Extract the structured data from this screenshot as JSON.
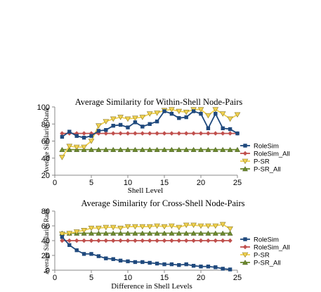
{
  "chart_data": [
    {
      "type": "line",
      "title": "Average Similarity for Within-Shell Node-Pairs",
      "xlabel": "Shell Level",
      "ylabel": "Average Similarity Rank",
      "xlim": [
        0,
        25
      ],
      "ylim": [
        20,
        100
      ],
      "xticks": [
        0,
        5,
        10,
        15,
        20,
        25
      ],
      "yticks": [
        20,
        40,
        60,
        80,
        100
      ],
      "grid": false,
      "legend": "right",
      "x": [
        1,
        2,
        3,
        4,
        5,
        6,
        7,
        8,
        9,
        10,
        11,
        12,
        13,
        14,
        15,
        16,
        17,
        18,
        19,
        20,
        21,
        22,
        23,
        24,
        25
      ],
      "series": [
        {
          "name": "RoleSim",
          "color": "#1f497d",
          "marker": "square",
          "values": [
            65,
            71,
            66,
            64,
            66,
            72,
            73,
            78,
            79,
            76,
            82,
            77,
            80,
            83,
            95,
            92,
            87,
            88,
            95,
            92,
            75,
            92,
            75,
            74,
            69
          ]
        },
        {
          "name": "RoleSim_All",
          "color": "#c0504d",
          "marker": "diamond",
          "values": [
            69,
            69,
            69,
            69,
            69,
            69,
            69,
            69,
            69,
            69,
            69,
            69,
            69,
            69,
            69,
            69,
            69,
            69,
            69,
            69,
            69,
            69,
            69,
            69,
            69
          ]
        },
        {
          "name": "P-SR",
          "color": "#f2d24e",
          "marker": "triangle-down",
          "values": [
            41,
            54,
            53,
            53,
            60,
            78,
            83,
            86,
            88,
            86,
            87,
            88,
            92,
            93,
            96,
            97,
            95,
            94,
            97,
            97,
            90,
            97,
            92,
            86,
            91
          ]
        },
        {
          "name": "P-SR_All",
          "color": "#6e8b2e",
          "marker": "triangle-up",
          "values": [
            50,
            50,
            50,
            50,
            50,
            50,
            50,
            50,
            50,
            50,
            50,
            50,
            50,
            50,
            50,
            50,
            50,
            50,
            50,
            50,
            50,
            50,
            50,
            50,
            50
          ]
        }
      ]
    },
    {
      "type": "line",
      "title": "Average Similarity for Cross-Shell Node-Pairs",
      "xlabel": "Difference in Shell Levels",
      "ylabel": "Average Similarity Rank",
      "xlim": [
        0,
        25
      ],
      "ylim": [
        0,
        80
      ],
      "xticks": [
        0,
        5,
        10,
        15,
        20,
        25
      ],
      "yticks": [
        0,
        20,
        40,
        60,
        80
      ],
      "grid": false,
      "legend": "right",
      "x": [
        1,
        2,
        3,
        4,
        5,
        6,
        7,
        8,
        9,
        10,
        11,
        12,
        13,
        14,
        15,
        16,
        17,
        18,
        19,
        20,
        21,
        22,
        23,
        24
      ],
      "series": [
        {
          "name": "RoleSim",
          "color": "#1f497d",
          "marker": "square",
          "values": [
            45,
            34,
            27,
            22,
            22,
            19,
            16,
            15,
            13,
            12,
            11,
            11,
            10,
            9,
            8,
            8,
            7,
            8,
            6,
            5,
            5,
            4,
            2,
            1
          ]
        },
        {
          "name": "RoleSim_All",
          "color": "#c0504d",
          "marker": "diamond",
          "values": [
            40,
            40,
            40,
            40,
            40,
            40,
            40,
            40,
            40,
            40,
            40,
            40,
            40,
            40,
            40,
            40,
            40,
            40,
            40,
            40,
            40,
            40,
            40,
            40
          ]
        },
        {
          "name": "P-SR",
          "color": "#f2d24e",
          "marker": "triangle-down",
          "values": [
            49,
            50,
            52,
            54,
            57,
            57,
            58,
            58,
            57,
            59,
            59,
            59,
            59,
            60,
            59,
            60,
            58,
            61,
            61,
            60,
            60,
            60,
            62,
            56
          ]
        },
        {
          "name": "P-SR_All",
          "color": "#6e8b2e",
          "marker": "triangle-up",
          "values": [
            50,
            50,
            50,
            50,
            50,
            50,
            50,
            50,
            50,
            50,
            50,
            50,
            50,
            50,
            50,
            50,
            50,
            50,
            50,
            50,
            50,
            50,
            50,
            50
          ]
        }
      ]
    }
  ]
}
